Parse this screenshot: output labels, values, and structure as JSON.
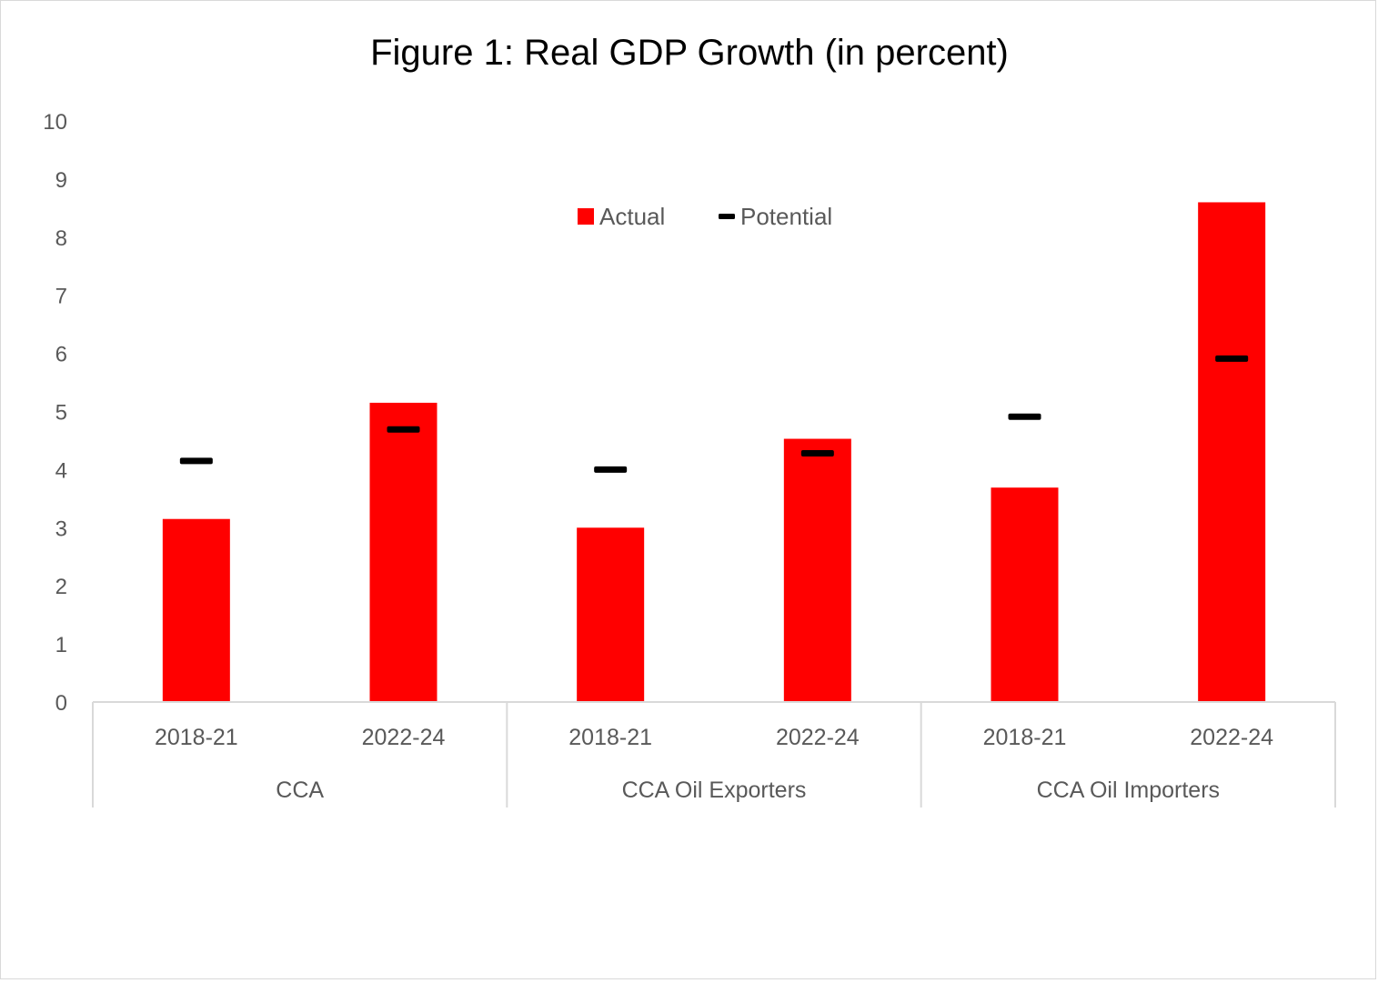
{
  "chart_data": {
    "type": "bar",
    "title": "Figure 1: Real GDP Growth (in percent)",
    "xlabel": "",
    "ylabel": "",
    "ylim": [
      0,
      10
    ],
    "yticks": [
      "0",
      "1",
      "2",
      "3",
      "4",
      "5",
      "6",
      "7",
      "8",
      "9",
      "10"
    ],
    "grid": false,
    "legend_position": "top-center",
    "groups": [
      "CCA",
      "CCA Oil Exporters",
      "CCA Oil Importers"
    ],
    "categories": [
      "2018-21",
      "2022-24",
      "2018-21",
      "2022-24",
      "2018-21",
      "2022-24"
    ],
    "series": [
      {
        "name": "Actual",
        "kind": "bar",
        "color": "#ff0000",
        "values": [
          3.15,
          5.15,
          3.0,
          4.53,
          3.69,
          8.6
        ]
      },
      {
        "name": "Potential",
        "kind": "marker-dash",
        "color": "#000000",
        "values": [
          4.15,
          4.69,
          4.0,
          4.28,
          4.91,
          5.91
        ]
      }
    ]
  }
}
